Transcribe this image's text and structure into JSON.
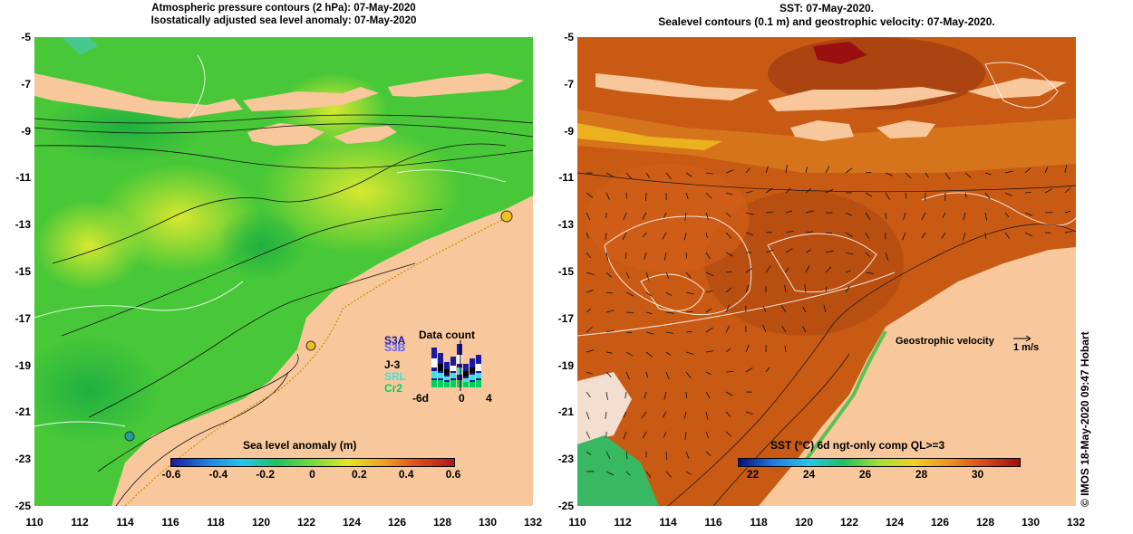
{
  "left_map": {
    "title_line1": "Atmospheric pressure contours (2 hPa): 07-May-2020",
    "title_line2": "Isostatically adjusted sea level anomaly: 07-May-2020",
    "colorbar": {
      "title": "Sea level anomaly (m)",
      "ticks": [
        "-0.6",
        "-0.4",
        "-0.2",
        "0",
        "0.2",
        "0.4",
        "0.6"
      ],
      "range": [
        -0.6,
        0.6
      ],
      "colors": [
        "#1a1aa0",
        "#1f7fe0",
        "#26c7e8",
        "#20c060",
        "#7ad93a",
        "#e6e620",
        "#f0a020",
        "#e04818",
        "#b01818"
      ]
    },
    "data_count": {
      "title": "Data count",
      "missions": [
        {
          "name": "S3A",
          "color": "#1a1aa0"
        },
        {
          "name": "S3B",
          "color": "#6060ff"
        },
        {
          "name": "J-3",
          "color": "#000000"
        },
        {
          "name": "SRL",
          "color": "#40e0e0"
        },
        {
          "name": "Cr2",
          "color": "#00d060"
        }
      ],
      "x_ticks": [
        "-6d",
        "0",
        "4"
      ]
    }
  },
  "right_map": {
    "title_line1": "SST: 07-May-2020.",
    "title_line2": "Sealevel contours (0.1 m) and geostrophic velocity: 07-May-2020.",
    "colorbar": {
      "title": "SST (°C) 6d ngt-only comp QL>=3",
      "ticks": [
        "22",
        "24",
        "26",
        "28",
        "30"
      ],
      "range": [
        21.5,
        31.5
      ],
      "colors": [
        "#0a0a80",
        "#1f7fe0",
        "#26c7e8",
        "#20c060",
        "#a8e030",
        "#f0d020",
        "#f09020",
        "#d84818",
        "#a01010"
      ]
    },
    "velocity_label": "Geostrophic velocity",
    "velocity_scale": "1 m/s"
  },
  "axes": {
    "y_ticks": [
      "-5",
      "-7",
      "-9",
      "-11",
      "-13",
      "-15",
      "-17",
      "-19",
      "-21",
      "-23",
      "-25"
    ],
    "x_ticks": [
      "110",
      "112",
      "114",
      "116",
      "118",
      "120",
      "122",
      "124",
      "126",
      "128",
      "130",
      "132"
    ],
    "lat_range": [
      -25,
      -5
    ],
    "lon_range": [
      110,
      132
    ]
  },
  "colors": {
    "land": "#f8c89c",
    "sea_green": "#40c840",
    "sst_orange": "#c85a14"
  },
  "credit": "© IMOS 18-May-2020 09:47 Hobart"
}
